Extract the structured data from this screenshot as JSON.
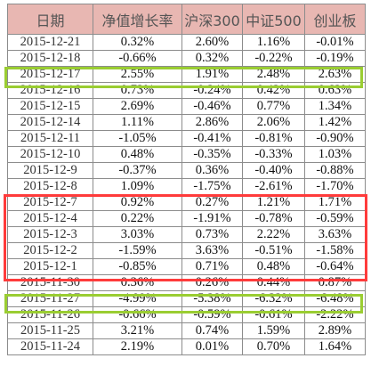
{
  "table": {
    "headers": [
      "日期",
      "净值增长率",
      "沪深300",
      "中证500",
      "创业板"
    ],
    "rows": [
      [
        "2015-12-21",
        "0.32%",
        "2.60%",
        "1.16%",
        "-0.01%"
      ],
      [
        "2015-12-18",
        "-0.66%",
        "0.32%",
        "-0.22%",
        "-0.19%"
      ],
      [
        "2015-12-17",
        "2.55%",
        "1.91%",
        "2.48%",
        "2.63%"
      ],
      [
        "2015-12-16",
        "0.73%",
        "-0.24%",
        "0.42%",
        "0.63%"
      ],
      [
        "2015-12-15",
        "2.69%",
        "-0.46%",
        "0.77%",
        "1.34%"
      ],
      [
        "2015-12-14",
        "1.11%",
        "2.86%",
        "2.06%",
        "1.42%"
      ],
      [
        "2015-12-11",
        "-1.05%",
        "-0.41%",
        "-0.81%",
        "-0.90%"
      ],
      [
        "2015-12-10",
        "0.48%",
        "-0.35%",
        "-0.33%",
        "1.03%"
      ],
      [
        "2015-12-9",
        "-0.37%",
        "0.36%",
        "-0.40%",
        "-0.88%"
      ],
      [
        "2015-12-8",
        "1.09%",
        "-1.75%",
        "-2.61%",
        "-1.70%"
      ],
      [
        "2015-12-7",
        "0.92%",
        "0.27%",
        "1.21%",
        "1.71%"
      ],
      [
        "2015-12-4",
        "0.22%",
        "-1.91%",
        "-0.78%",
        "-0.59%"
      ],
      [
        "2015-12-3",
        "3.03%",
        "0.73%",
        "2.22%",
        "3.63%"
      ],
      [
        "2015-12-2",
        "-1.59%",
        "3.63%",
        "-0.51%",
        "-1.58%"
      ],
      [
        "2015-12-1",
        "-0.85%",
        "0.71%",
        "0.48%",
        "-0.64%"
      ],
      [
        "2015-11-30",
        "0.36%",
        "0.26%",
        "0.44%",
        "0.87%"
      ],
      [
        "2015-11-27",
        "-4.99%",
        "-5.38%",
        "-6.32%",
        "-6.48%"
      ],
      [
        "2015-11-26",
        "-0.66%",
        "-0.59%",
        "-0.61%",
        "-2.22%"
      ],
      [
        "2015-11-25",
        "3.21%",
        "0.74%",
        "1.59%",
        "2.89%"
      ],
      [
        "2015-11-24",
        "2.19%",
        "0.01%",
        "0.70%",
        "1.64%"
      ]
    ]
  },
  "colors": {
    "header_background": "#e8b7b2",
    "grid_line": "#8c8c8c",
    "highlight_green": "#9acd32",
    "highlight_red": "#ff3b3b"
  }
}
